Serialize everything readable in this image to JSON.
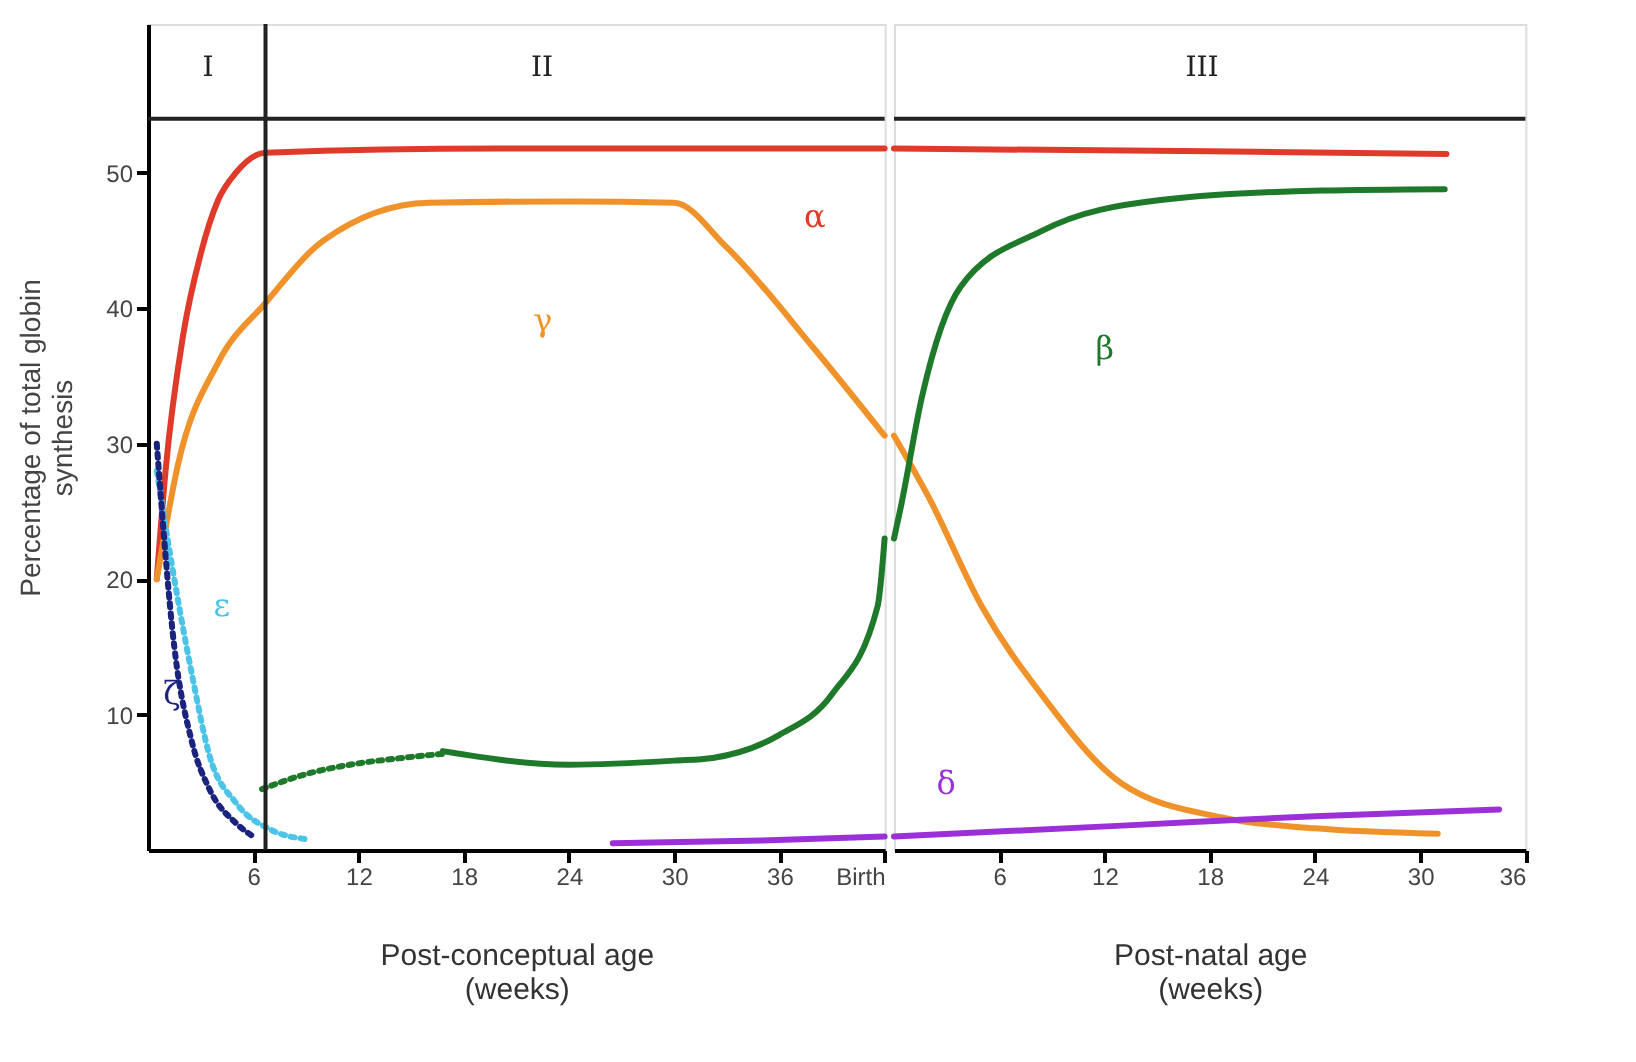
{
  "chart_data": [
    {
      "type": "line",
      "ylabel": "Percentage of total globin\nsynthesis",
      "xlabel": "Post-conceptual age\n(weeks)",
      "xlim": [
        0,
        42
      ],
      "ylim": [
        0,
        61
      ],
      "xticks": [
        6,
        12,
        18,
        24,
        30,
        36,
        {
          "value": 42,
          "label": "Birth"
        }
      ],
      "yticks": [
        10,
        20,
        30,
        40,
        50
      ],
      "grid": false,
      "series": [
        {
          "name": "α",
          "color": "#e03a2a",
          "line_style": "solid",
          "x": [
            0.5,
            1,
            2,
            3,
            4,
            5,
            6.7,
            20,
            42
          ],
          "values": [
            20,
            28,
            38,
            44,
            48,
            50,
            51.5,
            51.8,
            51.8
          ]
        },
        {
          "name": "γ",
          "color": "#f0922a",
          "line_style": "solid",
          "x": [
            0.5,
            1.7,
            4,
            6.7,
            10,
            16,
            24,
            30,
            33,
            38,
            42
          ],
          "values": [
            20,
            28.4,
            36,
            40.4,
            45,
            47.8,
            47.9,
            47.8,
            44.5,
            37,
            30.6
          ]
        },
        {
          "color": "#1e7a2a",
          "line_style": "dotted",
          "x": [
            6.5,
            9,
            12,
            14.5,
            16.8
          ],
          "values": [
            4.5,
            5.6,
            6.4,
            6.8,
            7.1
          ]
        },
        {
          "color": "#1e7a2a",
          "line_style": "solid",
          "x": [
            16.8,
            24,
            30,
            32.2,
            36,
            39,
            41.6,
            42
          ],
          "values": [
            7.3,
            6.3,
            6.6,
            6.8,
            8.5,
            11.5,
            18,
            23
          ]
        },
        {
          "color": "#9b30d9",
          "line_style": "solid",
          "x": [
            26.5,
            35,
            42
          ],
          "values": [
            0.5,
            0.7,
            1.0
          ]
        },
        {
          "name": "ε",
          "color": "#4cc4e8",
          "line_style": "dotted",
          "x": [
            0.5,
            1.5,
            2.5,
            3.5,
            5,
            7,
            9
          ],
          "values": [
            28,
            20,
            13,
            7,
            3.5,
            1.5,
            0.8
          ]
        },
        {
          "name": "ζ",
          "color": "#1a237e",
          "line_style": "dotted",
          "x": [
            0.5,
            1.5,
            2.5,
            3.5,
            5,
            6
          ],
          "values": [
            30,
            15,
            8,
            4.5,
            2,
            1
          ]
        }
      ],
      "ref_lines": [
        {
          "axis": "x",
          "value": 6.7,
          "color": "#222222"
        },
        {
          "axis": "y",
          "value": 54,
          "color": "#222222"
        }
      ],
      "annotations": [
        "I",
        "II"
      ]
    },
    {
      "type": "line",
      "xlabel": "Post-natal age\n(weeks)",
      "xlim": [
        0,
        36
      ],
      "ylim": [
        0,
        61
      ],
      "xticks": [
        6,
        12,
        18,
        24,
        30,
        36
      ],
      "tick_labels": "x",
      "grid": false,
      "series": [
        {
          "color": "#e03a2a",
          "line_style": "solid",
          "x": [
            0,
            18,
            31.5
          ],
          "values": [
            51.8,
            51.6,
            51.4
          ]
        },
        {
          "color": "#f0922a",
          "line_style": "solid",
          "x": [
            0,
            2,
            5,
            8.4,
            13,
            18.7,
            24,
            31
          ],
          "values": [
            30.6,
            26,
            18,
            11.5,
            4.9,
            2.4,
            1.6,
            1.2
          ]
        },
        {
          "name": "β",
          "color": "#1e7a2a",
          "line_style": "solid",
          "x": [
            0,
            0.4,
            1.6,
            3.8,
            8.4,
            15.2,
            24.4,
            31.4
          ],
          "values": [
            23,
            25.4,
            33.5,
            41.6,
            45.7,
            48,
            48.7,
            48.8
          ]
        },
        {
          "name": "δ",
          "color": "#9b30d9",
          "line_style": "solid",
          "x": [
            0,
            13,
            24,
            34.5
          ],
          "values": [
            1.0,
            1.8,
            2.5,
            3.0
          ]
        }
      ],
      "ref_lines": [
        {
          "axis": "y",
          "value": 54,
          "color": "#222222"
        }
      ],
      "annotations": [
        "III"
      ]
    }
  ]
}
